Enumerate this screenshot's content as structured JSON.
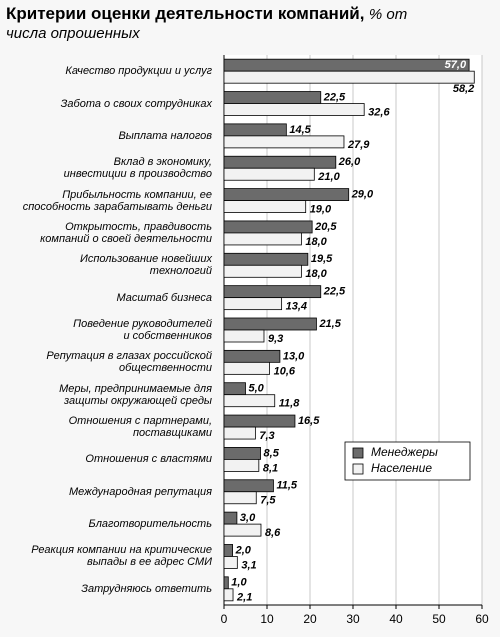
{
  "chart_data": {
    "type": "barh",
    "title": "Критерии оценки деятельности компаний,",
    "subtitle": "% от числа опрошенных",
    "categories": [
      "Качество продукции и услуг",
      "Забота о своих сотрудниках",
      "Выплата налогов",
      "Вклад в экономику,\nинвестиции в производство",
      "Прибыльность компании, ее\nспособность зарабатывать деньги",
      "Открытость, правдивость\nкомпаний о своей деятельности",
      "Использование новейших\nтехнологий",
      "Масштаб бизнеса",
      "Поведение руководителей\nи собственников",
      "Репутация в глазах российской\nобщественности",
      "Меры, предпринимаемые для\nзащиты окружающей среды",
      "Отношения с партнерами,\nпоставщиками",
      "Отношения с властями",
      "Международная репутация",
      "Благотворительность",
      "Реакция компании на критические\nвыпады в ее адрес СМИ",
      "Затрудняюсь ответить"
    ],
    "series": [
      {
        "name": "Менеджеры",
        "color": "#6b6b6b",
        "values": [
          57.0,
          22.5,
          14.5,
          26.0,
          29.0,
          20.5,
          19.5,
          22.5,
          21.5,
          13.0,
          5.0,
          16.5,
          8.5,
          11.5,
          3.0,
          2.0,
          1.0
        ],
        "value_labels": [
          "57,0",
          "22,5",
          "14,5",
          "26,0",
          "29,0",
          "20,5",
          "19,5",
          "22,5",
          "21,5",
          "13,0",
          "5,0",
          "16,5",
          "8,5",
          "11,5",
          "3,0",
          "2,0",
          "1,0"
        ]
      },
      {
        "name": "Население",
        "color": "#f2f2f2",
        "values": [
          58.2,
          32.6,
          27.9,
          21.0,
          19.0,
          18.0,
          18.0,
          13.4,
          9.3,
          10.6,
          11.8,
          7.3,
          8.1,
          7.5,
          8.6,
          3.1,
          2.1
        ],
        "value_labels": [
          "58,2",
          "32,6",
          "27,9",
          "21,0",
          "19,0",
          "18,0",
          "18,0",
          "13,4",
          "9,3",
          "10,6",
          "11,8",
          "7,3",
          "8,1",
          "7,5",
          "8,6",
          "3,1",
          "2,1"
        ]
      }
    ],
    "xlim": [
      0,
      60
    ],
    "xticks": [
      0,
      10,
      20,
      30,
      40,
      50,
      60
    ],
    "grid": true,
    "legend": "right"
  }
}
